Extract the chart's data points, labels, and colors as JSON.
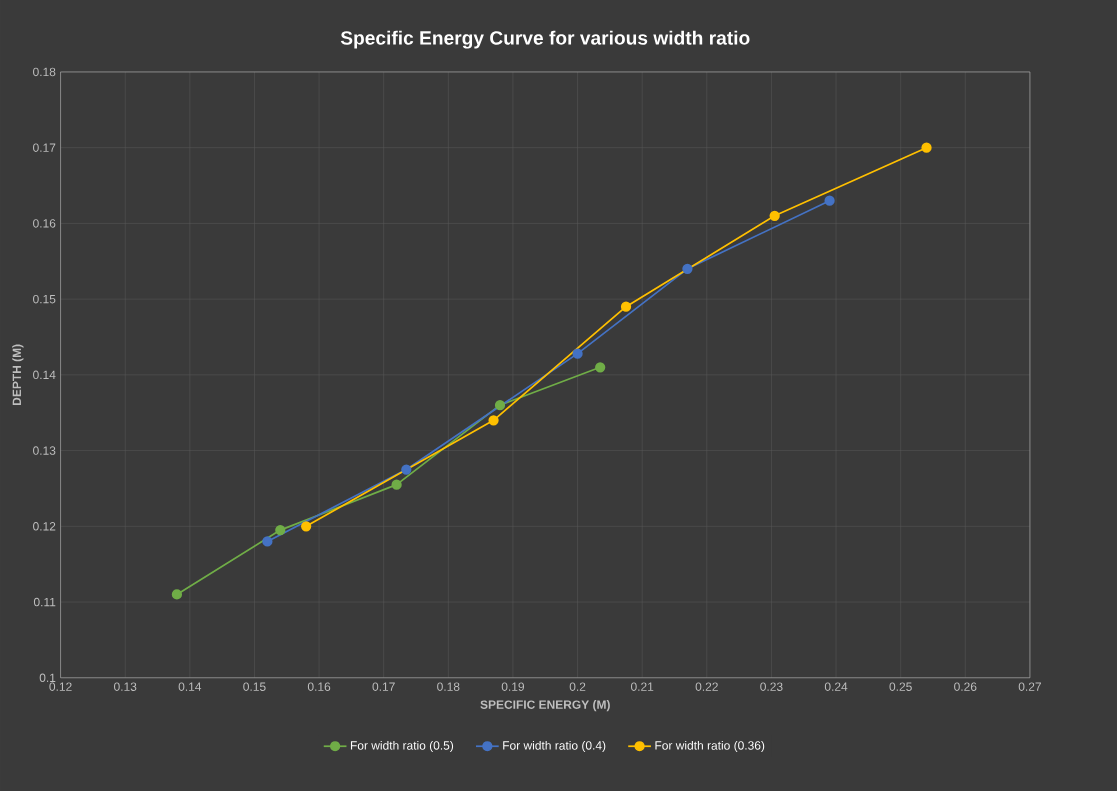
{
  "chart_data": {
    "type": "line",
    "title": "Specific Energy Curve for various width ratio",
    "xlabel": "SPECIFIC ENERGY (M)",
    "ylabel": "DEPTH (M)",
    "xlim": [
      0.12,
      0.27
    ],
    "xticks": [
      0.12,
      0.13,
      0.14,
      0.15,
      0.16,
      0.17,
      0.18,
      0.19,
      0.2,
      0.21,
      0.22,
      0.23,
      0.24,
      0.25,
      0.26,
      0.27
    ],
    "ylim": [
      0.1,
      0.18
    ],
    "yticks": [
      0.1,
      0.11,
      0.12,
      0.13,
      0.14,
      0.15,
      0.16,
      0.17,
      0.18
    ],
    "grid": true,
    "legend": "bottom",
    "marker": "circle",
    "line_style": "solid",
    "series": [
      {
        "name": "For width ratio (0.5)",
        "color": "#70ad47",
        "x": [
          0.138,
          0.154,
          0.172,
          0.188,
          0.2035
        ],
        "values": [
          0.111,
          0.1195,
          0.1255,
          0.136,
          0.141
        ]
      },
      {
        "name": "For width ratio (0.4)",
        "color": "#4472c4",
        "x": [
          0.152,
          0.1735,
          0.2,
          0.217,
          0.239
        ],
        "values": [
          0.118,
          0.1275,
          0.1428,
          0.154,
          0.163
        ]
      },
      {
        "name": "For width ratio (0.36)",
        "color": "#ffc000",
        "x": [
          0.158,
          0.187,
          0.2075,
          0.2305,
          0.254
        ],
        "values": [
          0.12,
          0.134,
          0.149,
          0.161,
          0.17
        ]
      }
    ]
  }
}
